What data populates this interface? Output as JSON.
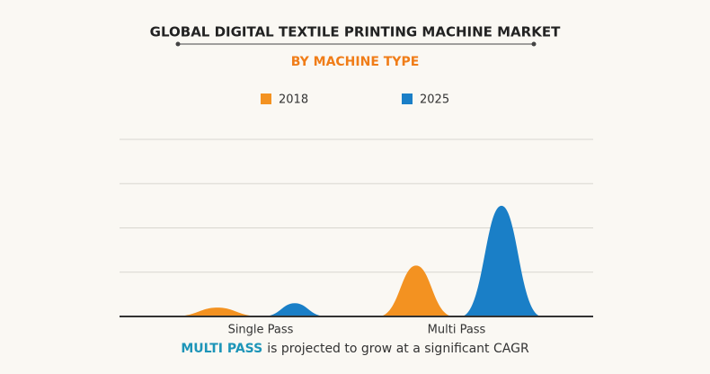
{
  "chart_data": {
    "type": "peak",
    "title": "GLOBAL DIGITAL TEXTILE PRINTING MACHINE MARKET",
    "subtitle": "BY MACHINE TYPE",
    "categories": [
      "Single Pass",
      "Multi Pass"
    ],
    "series": [
      {
        "name": "2018",
        "color": "#f39221",
        "values": [
          0.2,
          1.15
        ]
      },
      {
        "name": "2025",
        "color": "#1a7fc7",
        "values": [
          0.3,
          2.5
        ]
      }
    ],
    "ylim": [
      0,
      4
    ],
    "yticks": [
      0,
      1,
      2,
      3,
      4
    ],
    "grid": true,
    "legend": "top",
    "footnote": {
      "highlight": "MULTI PASS",
      "text": "is projected to grow at a significant CAGR"
    }
  }
}
